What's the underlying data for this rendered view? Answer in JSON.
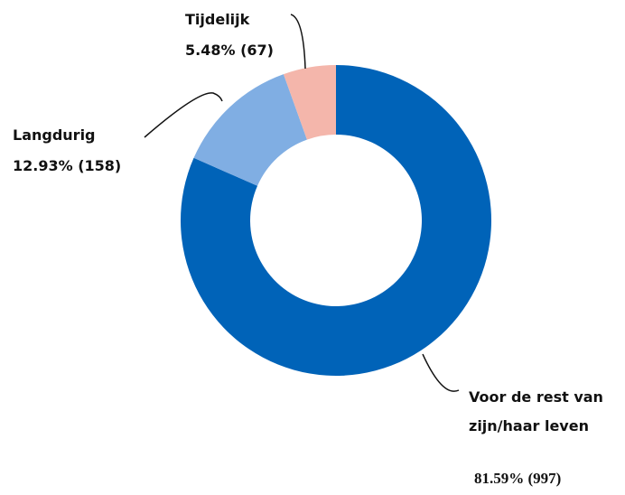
{
  "chart_data": {
    "type": "donut",
    "categories": [
      "Voor de rest van zijn/haar leven",
      "Langdurig",
      "Tijdelijk"
    ],
    "values": [
      81.59,
      12.93,
      5.48
    ],
    "value_labels": [
      "81.59% (997)",
      "12.93% (158)",
      "5.48% (67)"
    ],
    "colors": [
      "#0063b8",
      "#80aee3",
      "#f4b6ab"
    ]
  }
}
